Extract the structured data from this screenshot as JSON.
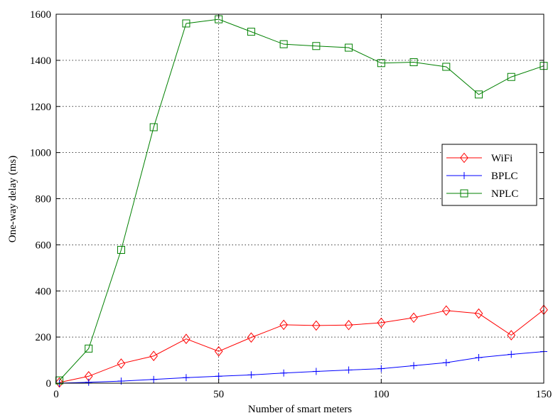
{
  "chart_data": {
    "type": "line",
    "title": "",
    "xlabel": "Number of smart meters",
    "ylabel": "One-way delay (ms)",
    "xlim": [
      0,
      150
    ],
    "ylim": [
      0,
      1600
    ],
    "xticks": [
      0,
      50,
      100,
      150
    ],
    "yticks": [
      0,
      200,
      400,
      600,
      800,
      1000,
      1200,
      1400,
      1600
    ],
    "grid": true,
    "legend_position": "right-middle",
    "series": [
      {
        "name": "WiFi",
        "color": "#ff0000",
        "marker": "diamond",
        "x": [
          1,
          10,
          20,
          30,
          40,
          50,
          60,
          70,
          80,
          90,
          100,
          110,
          120,
          130,
          140,
          150
        ],
        "y": [
          3,
          30,
          85,
          118,
          192,
          138,
          198,
          253,
          250,
          252,
          262,
          284,
          315,
          302,
          208,
          318
        ]
      },
      {
        "name": "BPLC",
        "color": "#0000ff",
        "marker": "plus",
        "x": [
          1,
          10,
          20,
          30,
          40,
          50,
          60,
          70,
          80,
          90,
          100,
          110,
          120,
          130,
          140,
          150
        ],
        "y": [
          0,
          4,
          9,
          16,
          24,
          30,
          36,
          44,
          51,
          57,
          63,
          76,
          89,
          111,
          125,
          137
        ]
      },
      {
        "name": "NPLC",
        "color": "#008000",
        "marker": "square",
        "x": [
          1,
          10,
          20,
          30,
          40,
          50,
          60,
          70,
          80,
          90,
          100,
          110,
          120,
          130,
          140,
          150
        ],
        "y": [
          12,
          150,
          578,
          1110,
          1560,
          1578,
          1524,
          1470,
          1462,
          1455,
          1388,
          1392,
          1372,
          1252,
          1328,
          1376
        ]
      }
    ]
  }
}
